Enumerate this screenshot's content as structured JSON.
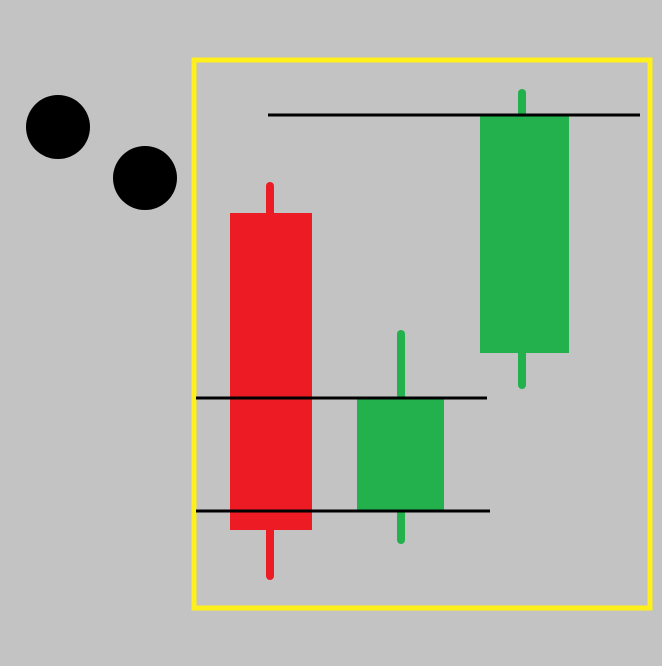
{
  "colors": {
    "background": "#c3c3c3",
    "frame": "#ffef1a",
    "bearish": "#ed1c24",
    "bullish": "#22b14c",
    "line": "#000000",
    "dot": "#000000"
  },
  "icons": {
    "dot": "filled-circle"
  },
  "candles": [
    {
      "name": "candle-1",
      "direction": "bearish"
    },
    {
      "name": "candle-2",
      "direction": "bullish"
    },
    {
      "name": "candle-3",
      "direction": "bullish"
    }
  ]
}
